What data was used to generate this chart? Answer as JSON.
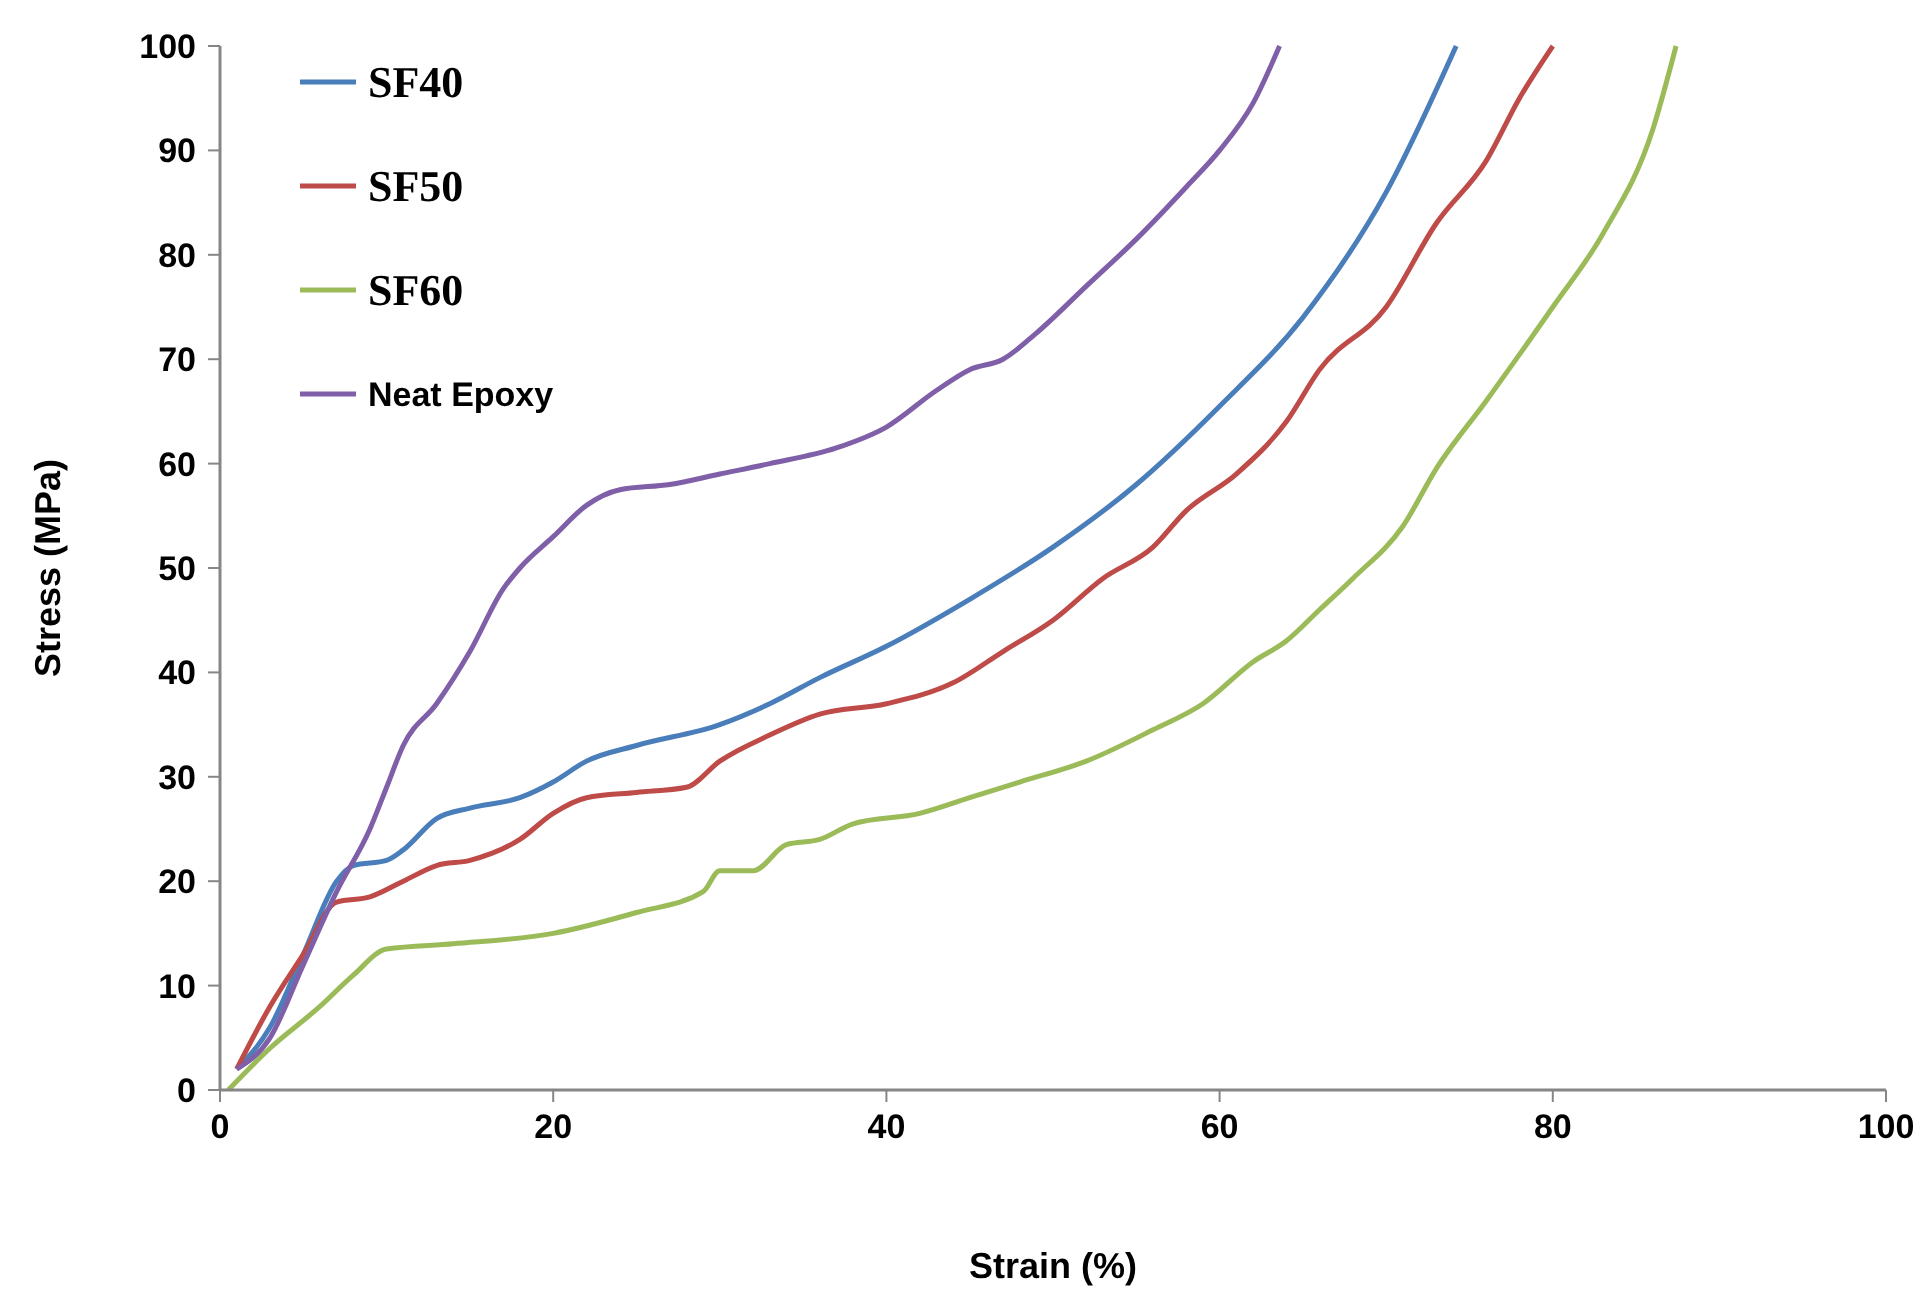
{
  "chart_data": {
    "type": "line",
    "xlabel": "Strain (%)",
    "ylabel": "Stress (MPa)",
    "xlim": [
      0,
      100
    ],
    "ylim": [
      0,
      100
    ],
    "xticks": [
      0,
      20,
      40,
      60,
      80,
      100
    ],
    "yticks": [
      0,
      10,
      20,
      30,
      40,
      50,
      60,
      70,
      80,
      90,
      100
    ],
    "grid": false,
    "legend": "top left",
    "marker": "none",
    "line_style": "solid",
    "series": [
      {
        "name": "SF40",
        "color": "#4a7ebb",
        "x": [
          1,
          3,
          5,
          7,
          8,
          10,
          11,
          13,
          15,
          18,
          20,
          22,
          25,
          30,
          33,
          36,
          40,
          45,
          50,
          55,
          60,
          65,
          70,
          74.2
        ],
        "values": [
          2,
          6,
          13,
          20,
          21.5,
          22,
          23,
          26,
          27,
          28,
          29.5,
          31.5,
          33,
          35,
          37,
          39.5,
          42.5,
          47,
          52,
          58,
          65.5,
          74,
          86,
          100
        ]
      },
      {
        "name": "SF50",
        "color": "#be4b48",
        "x": [
          1,
          3,
          5,
          7,
          9,
          11,
          13,
          15,
          18,
          20,
          22,
          25,
          28,
          30,
          33,
          36,
          40,
          44,
          47,
          50,
          53,
          56,
          58,
          61,
          64,
          66,
          70,
          73,
          76,
          78,
          80
        ],
        "values": [
          2,
          8,
          13,
          18,
          18.5,
          20,
          21.5,
          22,
          24,
          26.5,
          28,
          28.5,
          29,
          31.5,
          34,
          36,
          37,
          39,
          42,
          45,
          49,
          52,
          55.5,
          59,
          64,
          69,
          75,
          83,
          89,
          95,
          100
        ]
      },
      {
        "name": "SF60",
        "color": "#9bbb59",
        "x": [
          0.5,
          3,
          6,
          8,
          10,
          14,
          20,
          25,
          29,
          30,
          32,
          34,
          36,
          38,
          42,
          45,
          48,
          52,
          56,
          59,
          62,
          64,
          66,
          68,
          71,
          73,
          76,
          80,
          83,
          86,
          87.4
        ],
        "values": [
          0,
          4,
          8,
          11,
          13.5,
          14,
          15,
          17,
          19,
          21,
          21,
          23.5,
          24,
          25.5,
          26.5,
          28,
          29.5,
          31.5,
          34.5,
          37,
          41,
          43,
          46,
          49,
          54,
          59.5,
          66,
          75,
          82,
          92,
          100
        ]
      },
      {
        "name": "Neat Epoxy",
        "color": "#7f5fa8",
        "x": [
          1,
          3,
          5,
          7,
          9,
          10,
          11,
          13,
          15,
          17,
          18,
          20,
          22,
          24,
          27,
          30,
          33,
          37,
          40,
          43,
          45,
          47,
          49,
          52,
          55,
          58,
          60,
          62,
          63.6
        ],
        "values": [
          2,
          5,
          12,
          19,
          25,
          29,
          33,
          37,
          42,
          48,
          50,
          53,
          56,
          57.5,
          58,
          59,
          60,
          61.5,
          63.5,
          67,
          69,
          70,
          72.5,
          77,
          81.5,
          86.5,
          90,
          94.5,
          100
        ]
      }
    ]
  }
}
